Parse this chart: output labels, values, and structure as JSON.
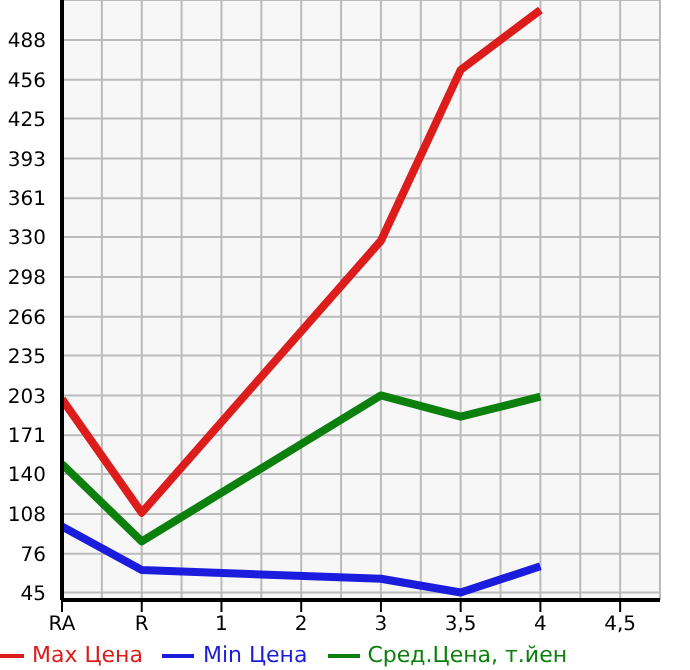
{
  "chart_data": {
    "type": "line",
    "categories": [
      "RA",
      "R",
      "1",
      "2",
      "3",
      "3,5",
      "4",
      "4,5"
    ],
    "series": [
      {
        "name": "Max Цена",
        "color": "#dd1c1c",
        "values": [
          200,
          109,
          null,
          null,
          327,
          464,
          512,
          null
        ]
      },
      {
        "name": "Min Цена",
        "color": "#1c1cdd",
        "values": [
          98,
          63,
          null,
          null,
          56,
          45,
          66,
          null
        ]
      },
      {
        "name": "Сред.Цена, т.йен",
        "color": "#0c800c",
        "values": [
          148,
          86,
          null,
          null,
          203,
          186,
          202,
          null
        ]
      }
    ],
    "ylim": [
      39,
      520
    ],
    "yticks": [
      45,
      76,
      108,
      140,
      171,
      203,
      235,
      266,
      298,
      330,
      361,
      393,
      425,
      456,
      488
    ],
    "grid": true,
    "legend": "bottom left",
    "marker": "none",
    "line_style": "solid"
  }
}
